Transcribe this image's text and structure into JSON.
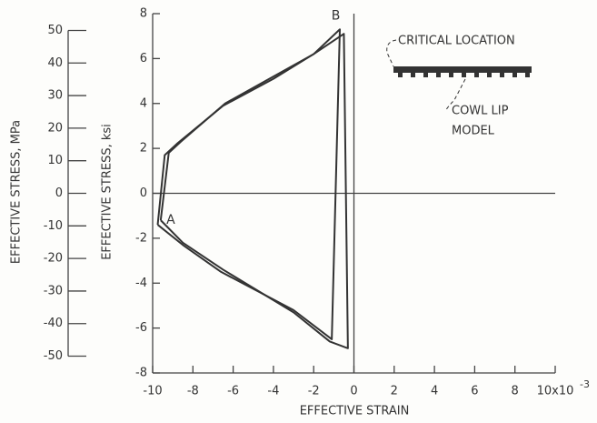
{
  "chart_data": {
    "type": "line",
    "xlabel": "EFFECTIVE STRAIN",
    "ylabel": "EFFECTIVE STRESS, ksi",
    "y2label": "EFFECTIVE STRESS, MPa",
    "xlim": [
      -10,
      10
    ],
    "xticks": [
      -10,
      -8,
      -6,
      -4,
      -2,
      0,
      2,
      4,
      6,
      8,
      {
        "value": 10,
        "label": "10x10"
      }
    ],
    "xtick_exponent": "-3",
    "ylim": [
      -8,
      8
    ],
    "yticks": [
      -8,
      -6,
      -4,
      -2,
      0,
      2,
      4,
      6,
      8
    ],
    "y2lim": [
      -55.16,
      55.16
    ],
    "y2ticks": [
      -50,
      -40,
      -30,
      -20,
      -10,
      0,
      10,
      20,
      30,
      40,
      50
    ],
    "series": [
      {
        "color": "#333333",
        "x": [
          -9.75,
          -9.4,
          -8.8,
          -6.5,
          -4,
          -2,
          -0.7,
          -1.1,
          -3,
          -6.6,
          -8.5,
          -9.75
        ],
        "values": [
          -1.4,
          1.7,
          2.2,
          3.9,
          5.1,
          6.2,
          7.3,
          -6.5,
          -5.2,
          -3.5,
          -2.3,
          -1.4
        ]
      },
      {
        "color": "#333333",
        "x": [
          -9.6,
          -9.2,
          -8.6,
          -6.4,
          -4,
          -2,
          -0.5,
          -0.3,
          -1.2,
          -3,
          -6.5,
          -8.5,
          -9.6
        ],
        "values": [
          -1.2,
          1.8,
          2.3,
          4.0,
          5.2,
          6.2,
          7.1,
          -6.9,
          -6.6,
          -5.3,
          -3.4,
          -2.2,
          -1.2
        ]
      }
    ],
    "annotations": [
      {
        "text": "A",
        "x": -9.1,
        "y": -1.2
      },
      {
        "text": "B",
        "x": -0.9,
        "y": 7.9
      }
    ],
    "inset_labels": [
      "CRITICAL LOCATION",
      "COWL LIP",
      "MODEL"
    ]
  }
}
